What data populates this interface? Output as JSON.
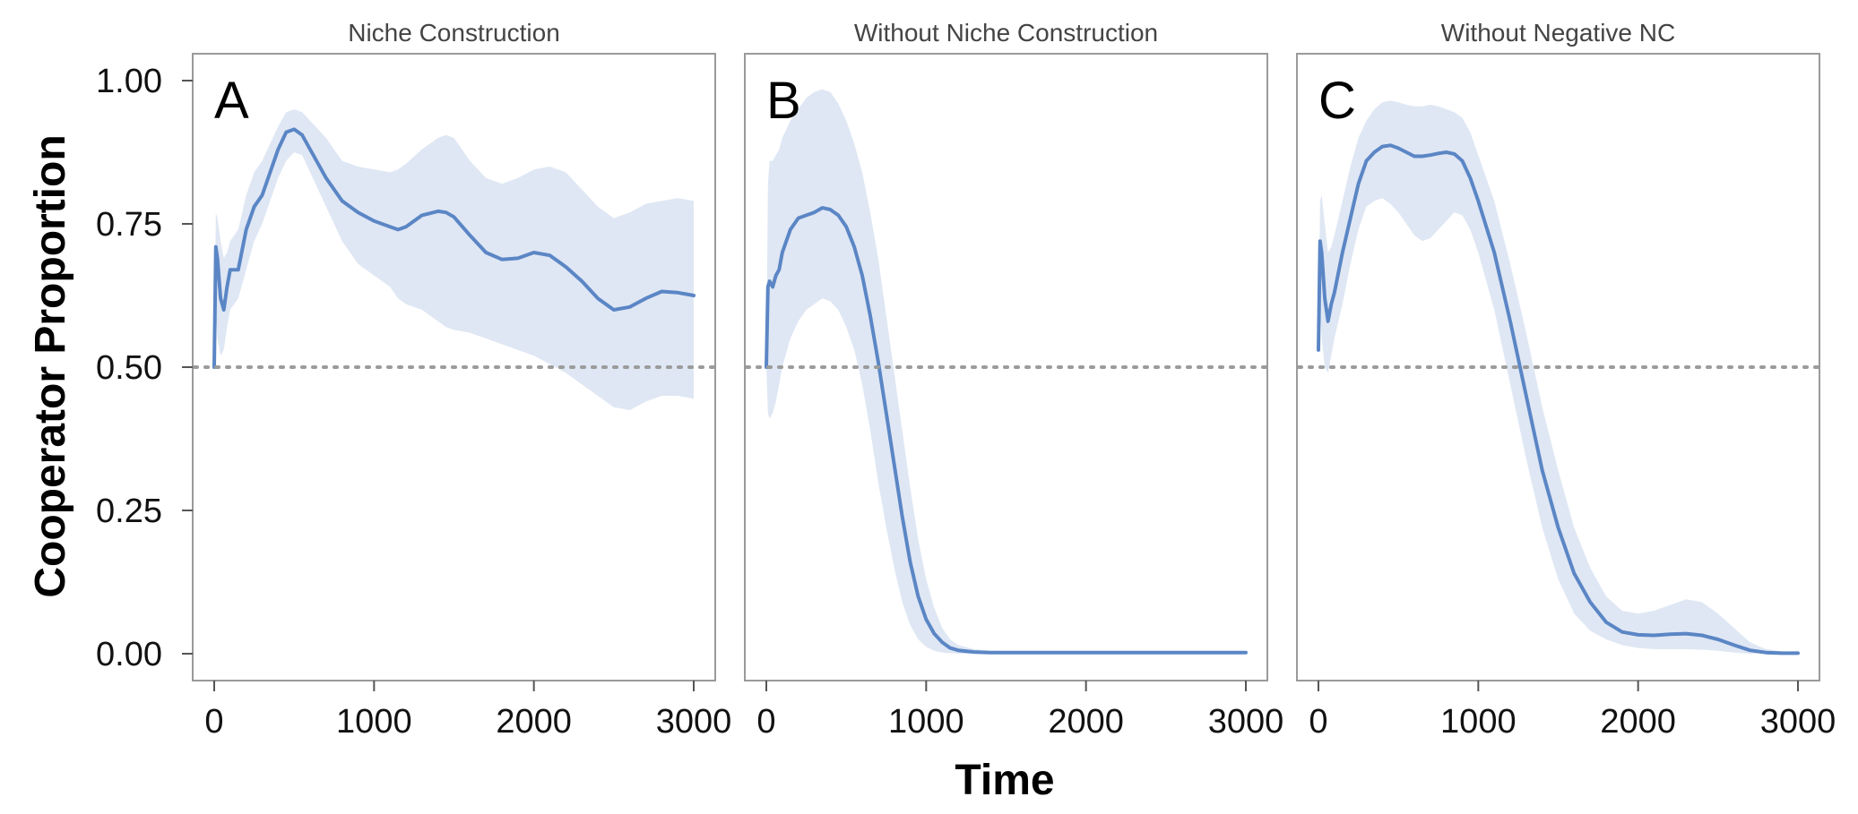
{
  "colors": {
    "line": "#5b86c5",
    "band": "#dfe7f4",
    "reference": "#9b9b9b"
  },
  "axes": {
    "ylabel": "Cooperator Proportion",
    "xlabel": "Time"
  },
  "chart_data": [
    {
      "type": "line",
      "title": "Niche Construction",
      "panel_label": "A",
      "xlim": [
        0,
        3000
      ],
      "ylim": [
        0,
        1
      ],
      "xticks": [
        "0",
        "1000",
        "2000",
        "3000"
      ],
      "yticks": [
        "0.00",
        "0.25",
        "0.50",
        "0.75",
        "1.00"
      ],
      "reference_line": 0.5,
      "series": [
        {
          "x": [
            0,
            10,
            20,
            40,
            60,
            80,
            100,
            150,
            200,
            250,
            300,
            350,
            400,
            450,
            500,
            550,
            600,
            700,
            800,
            900,
            1000,
            1100,
            1150,
            1200,
            1300,
            1400,
            1450,
            1500,
            1600,
            1700,
            1800,
            1900,
            2000,
            2100,
            2200,
            2300,
            2400,
            2500,
            2600,
            2700,
            2800,
            2900,
            3000
          ],
          "y": [
            0.5,
            0.71,
            0.69,
            0.62,
            0.6,
            0.64,
            0.67,
            0.67,
            0.74,
            0.78,
            0.8,
            0.84,
            0.88,
            0.91,
            0.915,
            0.905,
            0.88,
            0.83,
            0.79,
            0.77,
            0.755,
            0.745,
            0.74,
            0.745,
            0.765,
            0.772,
            0.77,
            0.762,
            0.73,
            0.7,
            0.688,
            0.69,
            0.7,
            0.695,
            0.675,
            0.65,
            0.62,
            0.6,
            0.605,
            0.62,
            0.632,
            0.63,
            0.625
          ],
          "lower": [
            0.5,
            0.6,
            0.55,
            0.52,
            0.53,
            0.57,
            0.6,
            0.62,
            0.67,
            0.72,
            0.75,
            0.79,
            0.83,
            0.86,
            0.875,
            0.87,
            0.84,
            0.78,
            0.72,
            0.68,
            0.66,
            0.64,
            0.62,
            0.61,
            0.6,
            0.58,
            0.57,
            0.565,
            0.56,
            0.55,
            0.54,
            0.53,
            0.52,
            0.505,
            0.49,
            0.47,
            0.45,
            0.43,
            0.425,
            0.44,
            0.45,
            0.45,
            0.445
          ],
          "upper": [
            0.5,
            0.77,
            0.76,
            0.72,
            0.69,
            0.7,
            0.72,
            0.74,
            0.8,
            0.84,
            0.86,
            0.89,
            0.92,
            0.945,
            0.95,
            0.945,
            0.93,
            0.9,
            0.86,
            0.85,
            0.845,
            0.84,
            0.845,
            0.855,
            0.88,
            0.9,
            0.905,
            0.9,
            0.86,
            0.83,
            0.82,
            0.83,
            0.845,
            0.85,
            0.84,
            0.81,
            0.78,
            0.76,
            0.77,
            0.785,
            0.79,
            0.795,
            0.79
          ]
        }
      ]
    },
    {
      "type": "line",
      "title": "Without Niche Construction",
      "panel_label": "B",
      "xlim": [
        0,
        3000
      ],
      "ylim": [
        0,
        1
      ],
      "xticks": [
        "0",
        "1000",
        "2000",
        "3000"
      ],
      "yticks": [
        "0.00",
        "0.25",
        "0.50",
        "0.75",
        "1.00"
      ],
      "reference_line": 0.5,
      "series": [
        {
          "x": [
            0,
            10,
            20,
            40,
            60,
            80,
            100,
            150,
            200,
            250,
            300,
            350,
            400,
            450,
            500,
            550,
            600,
            650,
            700,
            750,
            800,
            850,
            900,
            950,
            1000,
            1050,
            1100,
            1150,
            1200,
            1300,
            1400,
            1600,
            1800,
            2000,
            2200,
            2400,
            2600,
            2800,
            3000
          ],
          "y": [
            0.5,
            0.64,
            0.65,
            0.64,
            0.66,
            0.67,
            0.7,
            0.74,
            0.76,
            0.765,
            0.77,
            0.778,
            0.775,
            0.765,
            0.745,
            0.71,
            0.66,
            0.59,
            0.51,
            0.42,
            0.33,
            0.24,
            0.16,
            0.1,
            0.06,
            0.035,
            0.02,
            0.01,
            0.006,
            0.003,
            0.002,
            0.002,
            0.002,
            0.002,
            0.002,
            0.002,
            0.002,
            0.002,
            0.002
          ],
          "lower": [
            0.5,
            0.42,
            0.41,
            0.42,
            0.44,
            0.47,
            0.5,
            0.55,
            0.58,
            0.6,
            0.61,
            0.62,
            0.615,
            0.6,
            0.57,
            0.53,
            0.47,
            0.39,
            0.3,
            0.22,
            0.15,
            0.09,
            0.05,
            0.025,
            0.012,
            0.005,
            0.002,
            0.001,
            0.0,
            0.0,
            0.0,
            0.0,
            0.0,
            0.0,
            0.0,
            0.0,
            0.0,
            0.0,
            0.0
          ],
          "upper": [
            0.5,
            0.82,
            0.86,
            0.86,
            0.87,
            0.88,
            0.9,
            0.93,
            0.95,
            0.97,
            0.98,
            0.985,
            0.98,
            0.96,
            0.93,
            0.89,
            0.84,
            0.77,
            0.69,
            0.59,
            0.49,
            0.39,
            0.29,
            0.2,
            0.13,
            0.08,
            0.045,
            0.025,
            0.015,
            0.008,
            0.005,
            0.004,
            0.004,
            0.004,
            0.004,
            0.004,
            0.004,
            0.004,
            0.004
          ]
        }
      ]
    },
    {
      "type": "line",
      "title": "Without Negative NC",
      "panel_label": "C",
      "xlim": [
        0,
        3000
      ],
      "ylim": [
        0,
        1
      ],
      "xticks": [
        "0",
        "1000",
        "2000",
        "3000"
      ],
      "yticks": [
        "0.00",
        "0.25",
        "0.50",
        "0.75",
        "1.00"
      ],
      "reference_line": 0.5,
      "series": [
        {
          "x": [
            0,
            10,
            20,
            40,
            60,
            80,
            100,
            150,
            200,
            250,
            300,
            350,
            400,
            450,
            500,
            550,
            600,
            650,
            700,
            750,
            800,
            850,
            900,
            950,
            1000,
            1100,
            1200,
            1300,
            1400,
            1500,
            1600,
            1700,
            1800,
            1900,
            2000,
            2100,
            2200,
            2300,
            2400,
            2500,
            2600,
            2700,
            2800,
            2900,
            3000
          ],
          "y": [
            0.53,
            0.72,
            0.7,
            0.62,
            0.58,
            0.61,
            0.63,
            0.7,
            0.76,
            0.82,
            0.86,
            0.875,
            0.885,
            0.887,
            0.882,
            0.875,
            0.868,
            0.868,
            0.87,
            0.873,
            0.875,
            0.872,
            0.86,
            0.83,
            0.79,
            0.7,
            0.58,
            0.45,
            0.32,
            0.22,
            0.14,
            0.09,
            0.055,
            0.038,
            0.033,
            0.032,
            0.034,
            0.035,
            0.032,
            0.025,
            0.015,
            0.006,
            0.002,
            0.001,
            0.001
          ],
          "lower": [
            0.53,
            0.6,
            0.55,
            0.5,
            0.49,
            0.52,
            0.55,
            0.61,
            0.68,
            0.74,
            0.78,
            0.79,
            0.795,
            0.785,
            0.77,
            0.75,
            0.73,
            0.72,
            0.725,
            0.74,
            0.755,
            0.77,
            0.765,
            0.74,
            0.7,
            0.6,
            0.47,
            0.34,
            0.22,
            0.13,
            0.07,
            0.04,
            0.025,
            0.015,
            0.01,
            0.008,
            0.008,
            0.008,
            0.007,
            0.005,
            0.002,
            0.0,
            0.0,
            0.0,
            0.0
          ],
          "upper": [
            0.53,
            0.79,
            0.8,
            0.75,
            0.7,
            0.71,
            0.73,
            0.79,
            0.85,
            0.9,
            0.93,
            0.95,
            0.962,
            0.965,
            0.962,
            0.958,
            0.955,
            0.955,
            0.958,
            0.955,
            0.95,
            0.945,
            0.935,
            0.91,
            0.87,
            0.79,
            0.68,
            0.56,
            0.43,
            0.32,
            0.22,
            0.15,
            0.1,
            0.075,
            0.07,
            0.075,
            0.085,
            0.095,
            0.09,
            0.07,
            0.045,
            0.02,
            0.008,
            0.004,
            0.003
          ]
        }
      ]
    }
  ]
}
